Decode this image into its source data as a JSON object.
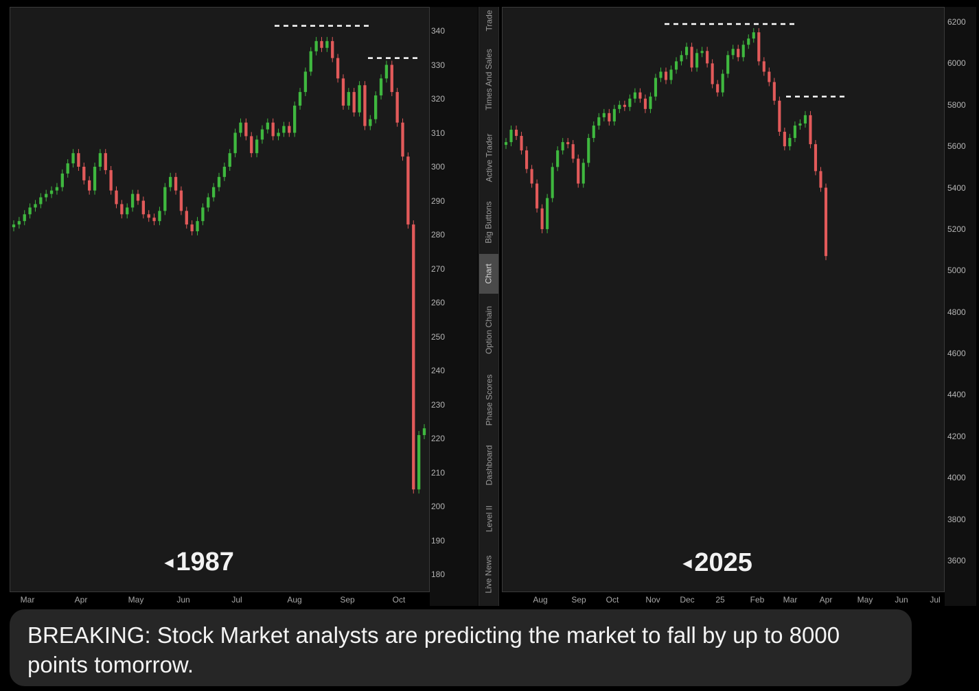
{
  "sidebar_tabs": [
    "Trade",
    "Times And Sales",
    "Active Trader",
    "Big Buttons",
    "Chart",
    "Option Chain",
    "Phase Scores",
    "Dashboard",
    "Level II",
    "Live News"
  ],
  "active_tab": "Chart",
  "caption": "BREAKING: Stock Market analysts are predicting the market to fall by up to 8000 points tomorrow.",
  "colors": {
    "up": "#3fb83f",
    "down": "#e25a5a",
    "background": "#1a1a1a",
    "guide": "#ffffff"
  },
  "chart_data": [
    {
      "type": "candlestick",
      "label": "1987",
      "x_ticks": [
        "Mar",
        "Apr",
        "May",
        "Jun",
        "Jul",
        "Aug",
        "Sep",
        "Oct"
      ],
      "y_ticks": [
        340,
        330,
        320,
        310,
        300,
        290,
        280,
        270,
        260,
        250,
        240,
        230,
        220,
        210,
        200,
        190,
        180
      ],
      "ylim": [
        177,
        346
      ],
      "series": [
        {
          "values": [
            283,
            284,
            286,
            288,
            289,
            291,
            292,
            293,
            294,
            298,
            301,
            304,
            300,
            296,
            293,
            300,
            304,
            299,
            293,
            289,
            286,
            288,
            292,
            290,
            286,
            285,
            284,
            287,
            294,
            297,
            293,
            287,
            283,
            281,
            284,
            288,
            291,
            294,
            297,
            300,
            304,
            310,
            313,
            309,
            304,
            308,
            311,
            313,
            309,
            310,
            312,
            310,
            318,
            322,
            328,
            334,
            337,
            335,
            337,
            332,
            326,
            318,
            322,
            316,
            324,
            312,
            314,
            321,
            326,
            330,
            322,
            313,
            303,
            283,
            205,
            221,
            223
          ]
        }
      ],
      "guides": [
        {
          "y": 341.5,
          "x_from": "Aug",
          "x_to": "Sep"
        },
        {
          "y": 332,
          "x_from": "Sep",
          "x_to": "Oct"
        }
      ]
    },
    {
      "type": "candlestick",
      "label": "2025",
      "x_ticks": [
        "Aug",
        "Sep",
        "Oct",
        "Nov",
        "Dec",
        "25",
        "Feb",
        "Mar",
        "Apr",
        "May",
        "Jun",
        "Jul"
      ],
      "y_ticks": [
        6200,
        6000,
        5800,
        5600,
        5400,
        5200,
        5000,
        4800,
        4600,
        4400,
        4200,
        4000,
        3800,
        3600
      ],
      "ylim": [
        3500,
        6270
      ],
      "series": [
        {
          "values": [
            5620,
            5680,
            5650,
            5580,
            5490,
            5420,
            5300,
            5200,
            5350,
            5500,
            5580,
            5620,
            5610,
            5540,
            5420,
            5520,
            5640,
            5700,
            5740,
            5760,
            5720,
            5780,
            5800,
            5790,
            5830,
            5860,
            5830,
            5780,
            5840,
            5930,
            5960,
            5920,
            5970,
            6010,
            6040,
            6080,
            5980,
            6050,
            6060,
            6000,
            5900,
            5860,
            5950,
            6040,
            6070,
            6030,
            6090,
            6120,
            6150,
            6010,
            5960,
            5910,
            5820,
            5670,
            5600,
            5640,
            5700,
            5710,
            5750,
            5610,
            5480,
            5400,
            5070
          ]
        }
      ],
      "guides": [
        {
          "y": 6190,
          "x_from": "Dec",
          "x_to": "Feb"
        },
        {
          "y": 5840,
          "x_from": "Mar",
          "x_to": "Apr"
        }
      ]
    }
  ]
}
